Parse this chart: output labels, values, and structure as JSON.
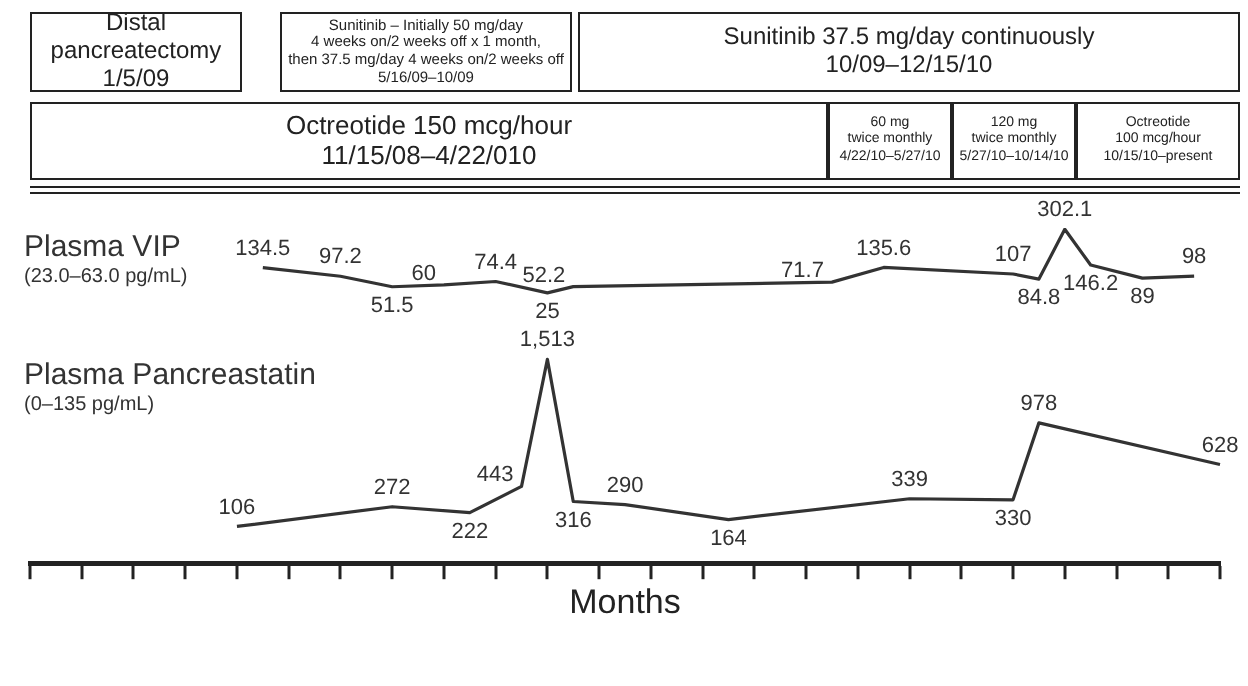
{
  "chart_data": [
    {
      "type": "line",
      "categories": [
        null,
        null,
        null,
        null,
        null,
        null,
        null,
        null,
        null,
        null,
        null,
        null,
        null,
        null,
        null,
        null,
        null,
        null,
        null,
        null,
        null,
        null,
        null,
        null,
        null,
        null,
        null,
        null,
        null,
        null,
        null,
        null,
        null,
        null,
        null,
        null,
        null,
        null,
        null,
        null,
        null,
        null,
        null,
        null,
        null,
        null,
        null
      ],
      "series": [
        {
          "name": "Plasma VIP",
          "color": "#333333",
          "values": [
            null,
            null,
            null,
            null,
            null,
            null,
            null,
            null,
            null,
            134.5,
            null,
            null,
            97.2,
            null,
            51.5,
            null,
            60,
            null,
            74.4,
            null,
            25,
            52.2,
            null,
            null,
            null,
            null,
            null,
            null,
            null,
            null,
            null,
            71.7,
            null,
            135.6,
            null,
            null,
            null,
            null,
            107,
            84.8,
            302.1,
            146.2,
            null,
            89,
            null,
            98,
            null
          ],
          "value_labels": [
            null,
            null,
            null,
            null,
            null,
            null,
            null,
            null,
            null,
            "134.5",
            null,
            null,
            "97.2",
            null,
            "51.5",
            null,
            "60",
            null,
            "74.4",
            null,
            "25",
            "52.2",
            null,
            null,
            null,
            null,
            null,
            null,
            null,
            null,
            null,
            "71.7",
            null,
            "135.6",
            null,
            null,
            null,
            null,
            "107",
            "84.8",
            "302.1",
            "146.2",
            null,
            "89",
            null,
            "98",
            null
          ]
        }
      ],
      "annotations": [
        "Distal\npancreatectomy\n1/5/09",
        "Sunitinib – Initially 50 mg/day\n4 weeks on/2 weeks off x 1 month,\nthen 37.5 mg/day 4 weeks on/2 weeks off\n5/16/09–10/09",
        "Sunitinib 37.5 mg/day continuously\n10/09–12/15/10",
        "Octreotide 150 mcg/hour\n11/15/08–4/22/010",
        "60 mg\ntwice monthly\n4/22/10–5/27/10",
        "120 mg\ntwice monthly\n5/27/10–10/14/10",
        "Octreotide\n100 mcg/hour\n10/15/10–present",
        "(23.0–63.0 pg/mL)"
      ],
      "legend": false,
      "grid": false,
      "marker": "none",
      "line_style": "solid",
      "tick_labels": false
    },
    {
      "type": "line",
      "xlabel": "Months",
      "categories": [
        null,
        null,
        null,
        null,
        null,
        null,
        null,
        null,
        null,
        null,
        null,
        null,
        null,
        null,
        null,
        null,
        null,
        null,
        null,
        null,
        null,
        null,
        null,
        null,
        null,
        null,
        null,
        null,
        null,
        null,
        null,
        null,
        null,
        null,
        null,
        null,
        null,
        null,
        null,
        null,
        null,
        null,
        null,
        null,
        null,
        null,
        null
      ],
      "series": [
        {
          "name": "Plasma Pancreastatin",
          "color": "#333333",
          "values": [
            null,
            null,
            null,
            null,
            null,
            null,
            null,
            null,
            106,
            null,
            null,
            null,
            null,
            null,
            272,
            null,
            null,
            222,
            null,
            443,
            1513,
            316,
            null,
            290,
            null,
            null,
            null,
            164,
            null,
            null,
            null,
            null,
            null,
            null,
            339,
            null,
            null,
            null,
            330,
            978,
            null,
            null,
            null,
            null,
            null,
            null,
            628
          ],
          "value_labels": [
            null,
            null,
            null,
            null,
            null,
            null,
            null,
            null,
            "106",
            null,
            null,
            null,
            null,
            null,
            "272",
            null,
            null,
            "222",
            null,
            "443",
            "1,513",
            "316",
            null,
            "290",
            null,
            null,
            null,
            "164",
            null,
            null,
            null,
            null,
            null,
            null,
            "339",
            null,
            null,
            null,
            "330",
            "978",
            null,
            null,
            null,
            null,
            null,
            null,
            "628"
          ]
        }
      ],
      "annotations": [
        "(0–135 pg/mL)"
      ],
      "legend": false,
      "grid": false,
      "marker": "none",
      "line_style": "solid",
      "tick_labels": false
    }
  ]
}
